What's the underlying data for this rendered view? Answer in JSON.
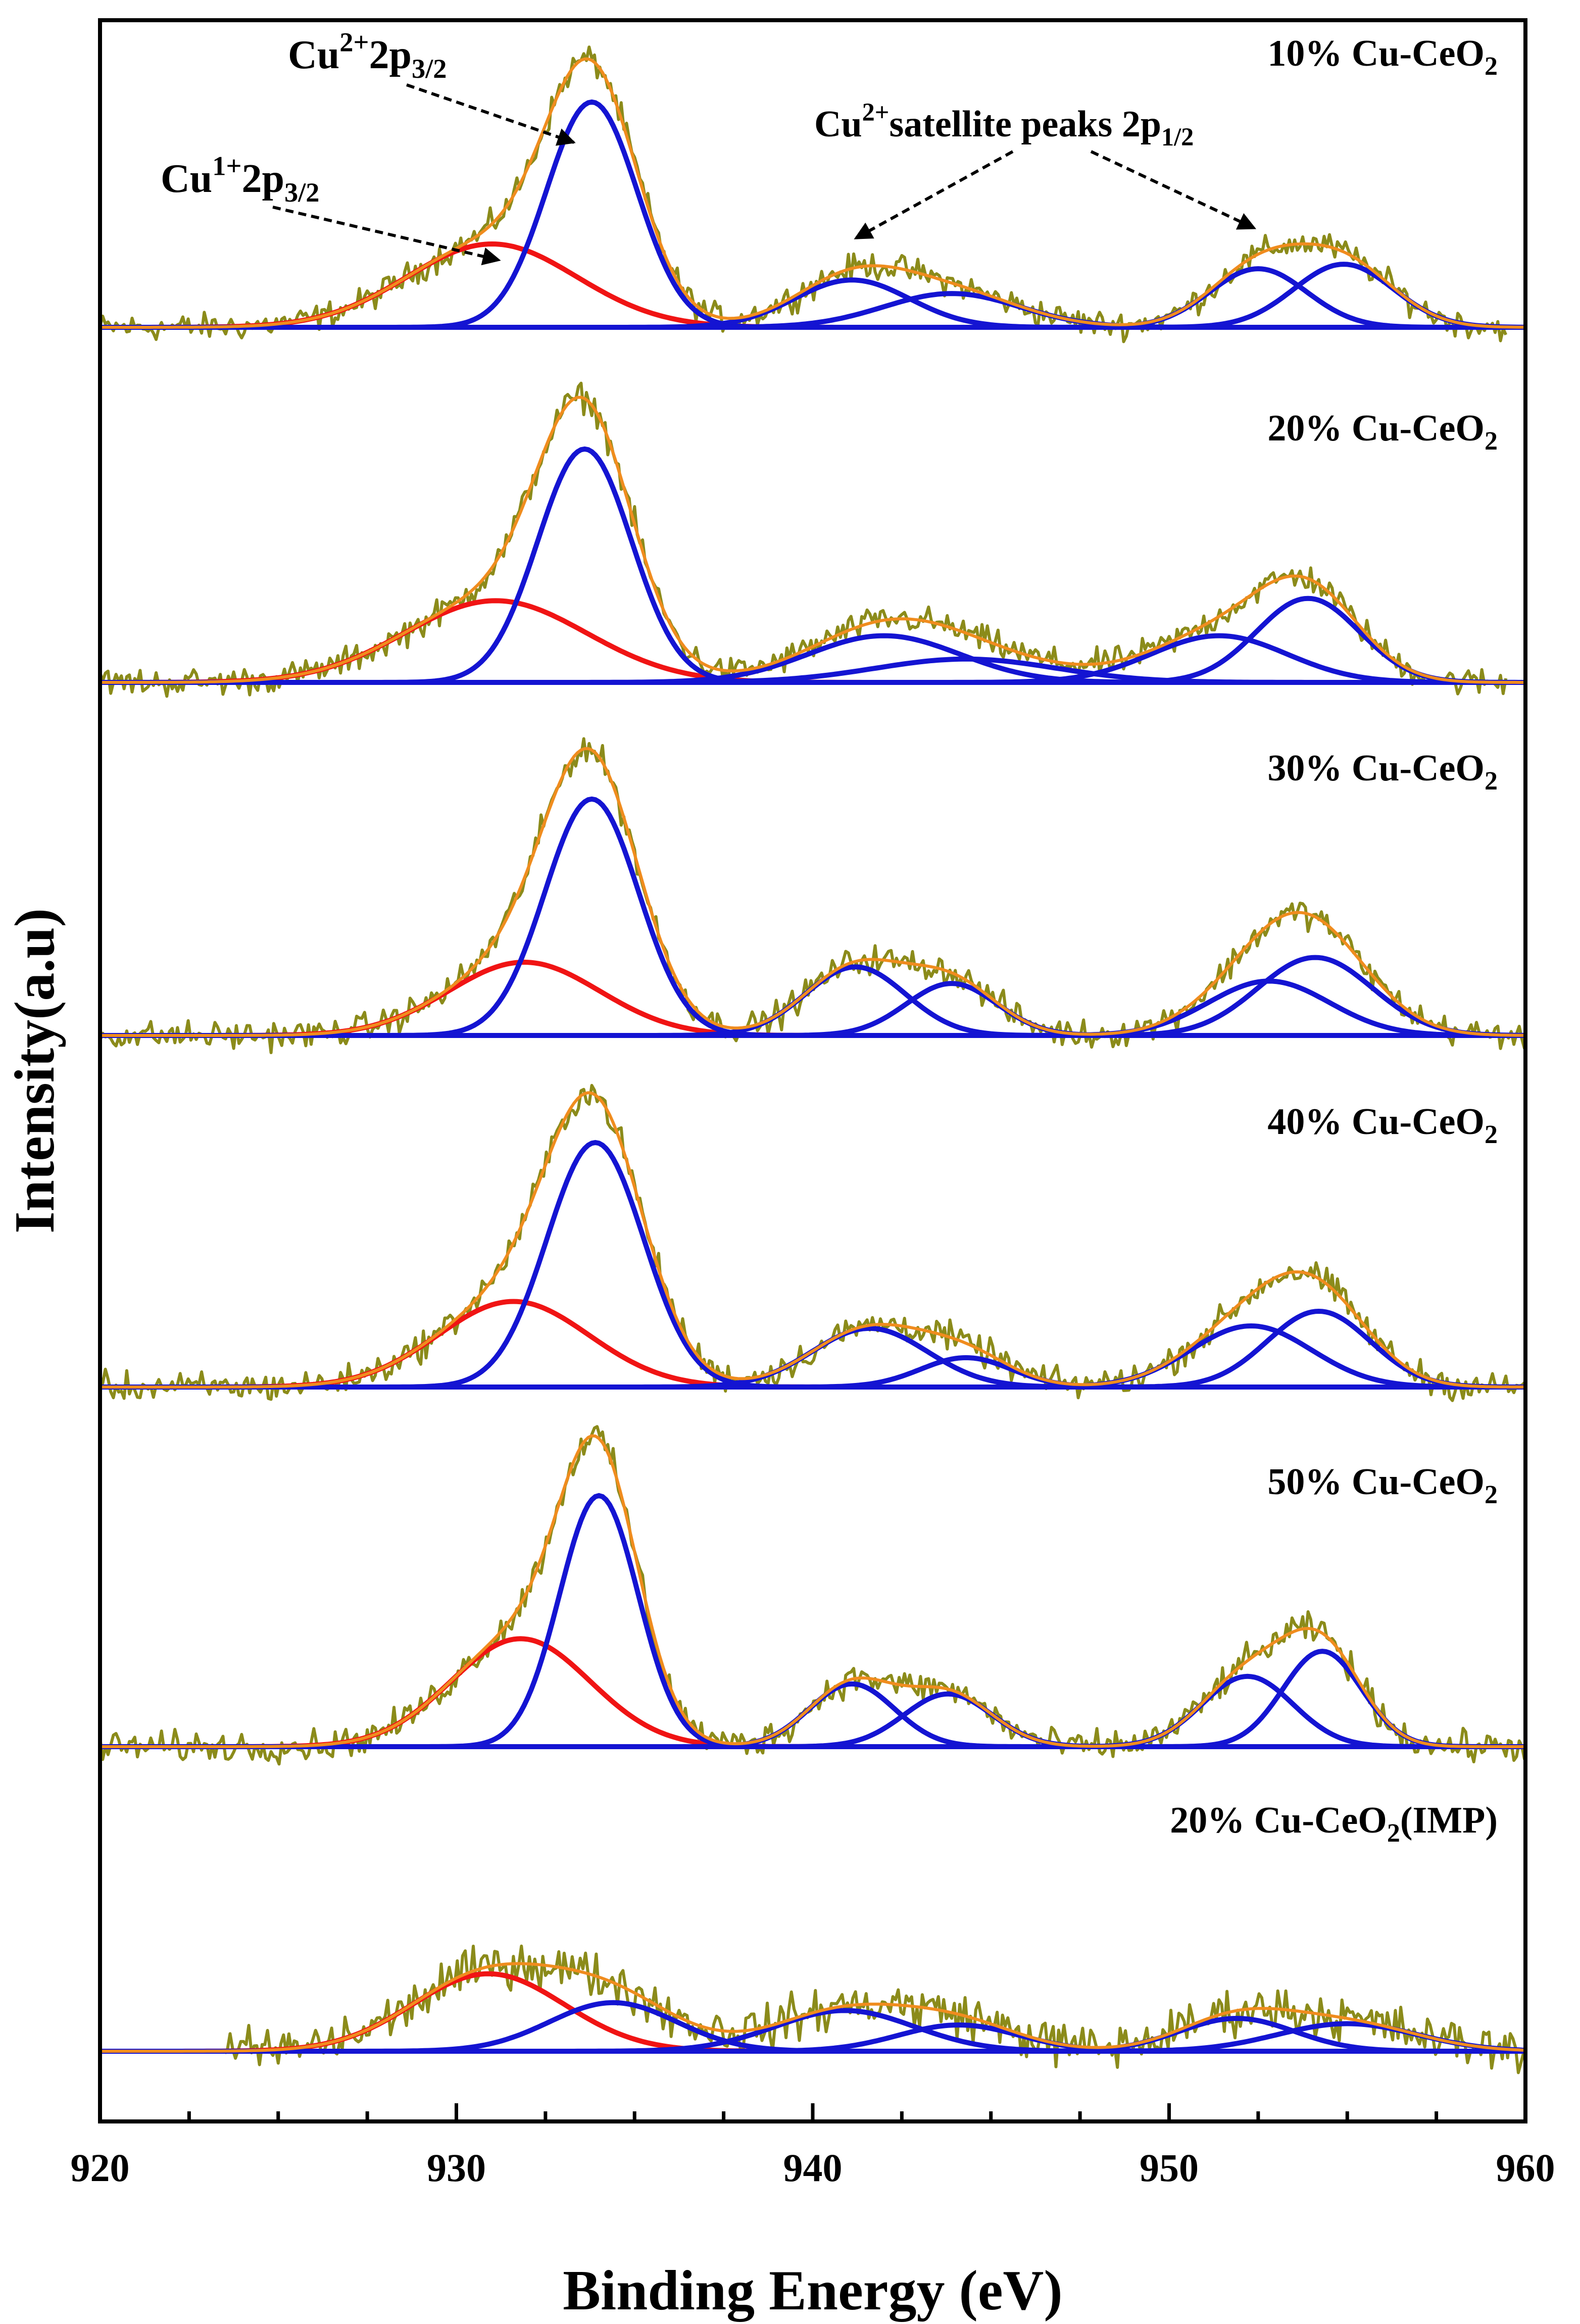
{
  "colors": {
    "raw": "#8b8b1a",
    "envelope": "#f08c1e",
    "cu1": "#f01414",
    "cu2": "#1414d2",
    "axis": "#000000"
  },
  "chart_data": {
    "type": "line",
    "title": "",
    "xlabel": "Binding Energy (eV)",
    "ylabel": "Intensity(a.u)",
    "xlim": [
      920,
      960
    ],
    "x_ticks": [
      "920",
      "930",
      "940",
      "950",
      "960"
    ],
    "x_tick_values": [
      920,
      930,
      940,
      950,
      960
    ],
    "annotations": [
      {
        "name": "cu2-2p32",
        "base": "Cu",
        "sup": "2+",
        "main": "2p",
        "sub": "3/2",
        "target_x": 933.3
      },
      {
        "name": "cu1-2p32",
        "base": "Cu",
        "sup": "1+",
        "main": "2p",
        "sub": "3/2",
        "target_x": 931.2
      },
      {
        "name": "cu2-satellite",
        "base": "Cu",
        "sup": "2+",
        "main": "satellite peaks 2p",
        "sub": "1/2",
        "target_x": [
          941.2,
          952.4
        ]
      }
    ],
    "spectra": [
      {
        "label": "10% Cu-CeO2",
        "label_main": "10% Cu-CeO",
        "label_sub": "2",
        "label_tail": "",
        "noise": 0.045,
        "range": [
          920,
          959.5
        ],
        "peaks": [
          {
            "type": "cu1",
            "center": 931.0,
            "height": 0.37,
            "fwhm": 5.6
          },
          {
            "type": "cu2",
            "center": 933.8,
            "height": 1.0,
            "fwhm": 3.0
          },
          {
            "type": "cu2",
            "center": 941.1,
            "height": 0.21,
            "fwhm": 3.8
          },
          {
            "type": "cu2",
            "center": 943.9,
            "height": 0.15,
            "fwhm": 4.5
          },
          {
            "type": "cu2",
            "center": 952.5,
            "height": 0.26,
            "fwhm": 3.2
          },
          {
            "type": "cu2",
            "center": 954.9,
            "height": 0.28,
            "fwhm": 3.3
          }
        ]
      },
      {
        "label": "20% Cu-CeO2",
        "label_main": "20% Cu-CeO",
        "label_sub": "2",
        "label_tail": "",
        "noise": 0.045,
        "range": [
          920,
          959.5
        ],
        "peaks": [
          {
            "type": "cu1",
            "center": 931.1,
            "height": 0.35,
            "fwhm": 6.0
          },
          {
            "type": "cu2",
            "center": 933.6,
            "height": 1.0,
            "fwhm": 3.1
          },
          {
            "type": "cu2",
            "center": 942.0,
            "height": 0.2,
            "fwhm": 5.0
          },
          {
            "type": "cu2",
            "center": 944.3,
            "height": 0.1,
            "fwhm": 6.0
          },
          {
            "type": "cu2",
            "center": 951.4,
            "height": 0.2,
            "fwhm": 4.5
          },
          {
            "type": "cu2",
            "center": 953.9,
            "height": 0.36,
            "fwhm": 3.4
          }
        ]
      },
      {
        "label": "30% Cu-CeO2",
        "label_main": "30% Cu-CeO",
        "label_sub": "2",
        "label_tail": "",
        "noise": 0.045,
        "range": [
          920,
          960
        ],
        "peaks": [
          {
            "type": "cu1",
            "center": 931.9,
            "height": 0.31,
            "fwhm": 5.0
          },
          {
            "type": "cu2",
            "center": 933.8,
            "height": 1.0,
            "fwhm": 3.1
          },
          {
            "type": "cu2",
            "center": 941.2,
            "height": 0.29,
            "fwhm": 3.3
          },
          {
            "type": "cu2",
            "center": 943.9,
            "height": 0.22,
            "fwhm": 3.0
          },
          {
            "type": "cu2",
            "center": 952.8,
            "height": 0.23,
            "fwhm": 4.0
          },
          {
            "type": "cu2",
            "center": 954.1,
            "height": 0.33,
            "fwhm": 3.8
          }
        ]
      },
      {
        "label": "40% Cu-CeO2",
        "label_main": "40% Cu-CeO",
        "label_sub": "2",
        "label_tail": "",
        "noise": 0.045,
        "range": [
          920,
          960
        ],
        "peaks": [
          {
            "type": "cu1",
            "center": 931.6,
            "height": 0.35,
            "fwhm": 5.0
          },
          {
            "type": "cu2",
            "center": 933.9,
            "height": 1.0,
            "fwhm": 3.2
          },
          {
            "type": "cu2",
            "center": 941.6,
            "height": 0.24,
            "fwhm": 3.8
          },
          {
            "type": "cu2",
            "center": 944.3,
            "height": 0.12,
            "fwhm": 3.0
          },
          {
            "type": "cu2",
            "center": 952.3,
            "height": 0.25,
            "fwhm": 4.0
          },
          {
            "type": "cu2",
            "center": 954.2,
            "height": 0.31,
            "fwhm": 3.4
          }
        ]
      },
      {
        "label": "50% Cu-CeO2",
        "label_main": "50% Cu-CeO",
        "label_sub": "2",
        "label_tail": "",
        "noise": 0.045,
        "range": [
          920,
          960
        ],
        "peaks": [
          {
            "type": "cu1",
            "center": 931.8,
            "height": 0.43,
            "fwhm": 4.6
          },
          {
            "type": "cu2",
            "center": 934.0,
            "height": 1.0,
            "fwhm": 2.6
          },
          {
            "type": "cu2",
            "center": 941.1,
            "height": 0.25,
            "fwhm": 2.8
          },
          {
            "type": "cu2",
            "center": 943.8,
            "height": 0.21,
            "fwhm": 2.9
          },
          {
            "type": "cu2",
            "center": 952.2,
            "height": 0.28,
            "fwhm": 3.0
          },
          {
            "type": "cu2",
            "center": 954.3,
            "height": 0.38,
            "fwhm": 2.6
          }
        ]
      },
      {
        "label": "20% Cu-CeO2(IMP)",
        "label_main": "20% Cu-CeO",
        "label_sub": "2",
        "label_tail": "(IMP)",
        "noise": 0.13,
        "range": [
          923.5,
          960
        ],
        "peaks": [
          {
            "type": "cu1",
            "center": 930.9,
            "height": 0.59,
            "fwhm": 5.0
          },
          {
            "type": "cu2",
            "center": 934.4,
            "height": 0.37,
            "fwhm": 4.2
          },
          {
            "type": "cu2",
            "center": 940.9,
            "height": 0.31,
            "fwhm": 4.6
          },
          {
            "type": "cu2",
            "center": 944.1,
            "height": 0.2,
            "fwhm": 4.0
          },
          {
            "type": "cu2",
            "center": 951.9,
            "height": 0.25,
            "fwhm": 3.8
          },
          {
            "type": "cu2",
            "center": 955.0,
            "height": 0.21,
            "fwhm": 4.6
          }
        ]
      }
    ]
  }
}
